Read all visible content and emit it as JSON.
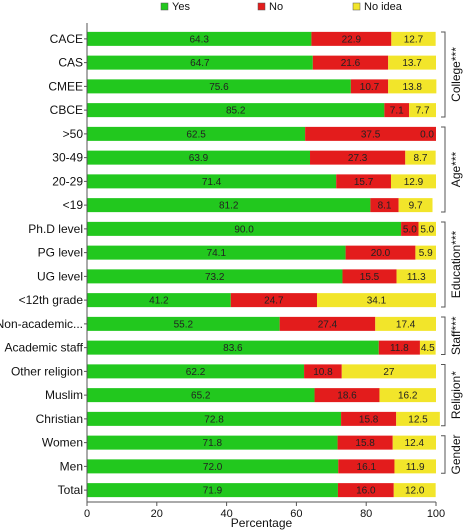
{
  "chart_data": {
    "type": "bar",
    "orientation": "horizontal-stacked-percent",
    "xlabel": "Percentage",
    "xlim": [
      0,
      100
    ],
    "xticks": [
      "0",
      "20",
      "40",
      "60",
      "80",
      "100"
    ],
    "grid": false,
    "legend_position": "top",
    "series": [
      {
        "name": "Yes",
        "color": "#22c81e"
      },
      {
        "name": "No",
        "color": "#e31c1c"
      },
      {
        "name": "No idea",
        "color": "#f2e52a"
      }
    ],
    "rows": [
      {
        "label": "CACE",
        "values": [
          64.3,
          22.9,
          12.7
        ],
        "texts": [
          "64.3",
          "22.9",
          "12.7"
        ]
      },
      {
        "label": "CAS",
        "values": [
          64.7,
          21.6,
          13.7
        ],
        "texts": [
          "64.7",
          "21.6",
          "13.7"
        ]
      },
      {
        "label": "CMEE",
        "values": [
          75.6,
          10.7,
          13.8
        ],
        "texts": [
          "75.6",
          "10.7",
          "13.8"
        ]
      },
      {
        "label": "CBCE",
        "values": [
          85.2,
          7.1,
          7.7
        ],
        "texts": [
          "85.2",
          "7.1",
          "7.7"
        ]
      },
      {
        "label": ">50",
        "values": [
          62.5,
          37.5,
          0.0
        ],
        "texts": [
          "62.5",
          "37.5",
          "0.0"
        ]
      },
      {
        "label": "30-49",
        "values": [
          63.9,
          27.3,
          8.7
        ],
        "texts": [
          "63.9",
          "27.3",
          "8.7"
        ]
      },
      {
        "label": "20-29",
        "values": [
          71.4,
          15.7,
          12.9
        ],
        "texts": [
          "71.4",
          "15.7",
          "12.9"
        ]
      },
      {
        "label": "<19",
        "values": [
          81.2,
          8.1,
          9.7
        ],
        "texts": [
          "81.2",
          "8.1",
          "9.7"
        ]
      },
      {
        "label": "Ph.D level",
        "values": [
          90.0,
          5.0,
          5.0
        ],
        "texts": [
          "90.0",
          "5.0",
          "5.0"
        ]
      },
      {
        "label": "PG level",
        "values": [
          74.1,
          20.0,
          5.9
        ],
        "texts": [
          "74.1",
          "20.0",
          "5.9"
        ]
      },
      {
        "label": "UG level",
        "values": [
          73.2,
          15.5,
          11.3
        ],
        "texts": [
          "73.2",
          "15.5",
          "11.3"
        ]
      },
      {
        "label": "<12th grade",
        "values": [
          41.2,
          24.7,
          34.1
        ],
        "texts": [
          "41.2",
          "24.7",
          "34.1"
        ]
      },
      {
        "label": "Non-academic...",
        "values": [
          55.2,
          27.4,
          17.4
        ],
        "texts": [
          "55.2",
          "27.4",
          "17.4"
        ]
      },
      {
        "label": "Academic staff",
        "values": [
          83.6,
          11.8,
          4.5
        ],
        "texts": [
          "83.6",
          "11.8",
          "4.5"
        ]
      },
      {
        "label": "Other religion",
        "values": [
          62.2,
          10.8,
          27.0
        ],
        "texts": [
          "62.2",
          "10.8",
          "27"
        ]
      },
      {
        "label": "Muslim",
        "values": [
          65.2,
          18.6,
          16.2
        ],
        "texts": [
          "65.2",
          "18.6",
          "16.2"
        ]
      },
      {
        "label": "Christian",
        "values": [
          72.8,
          15.8,
          12.5
        ],
        "texts": [
          "72.8",
          "15.8",
          "12.5"
        ]
      },
      {
        "label": "Women",
        "values": [
          71.8,
          15.8,
          12.4
        ],
        "texts": [
          "71.8",
          "15.8",
          "12.4"
        ]
      },
      {
        "label": "Men",
        "values": [
          72.0,
          16.1,
          11.9
        ],
        "texts": [
          "72.0",
          "16.1",
          "11.9"
        ]
      },
      {
        "label": "Total",
        "values": [
          71.9,
          16.0,
          12.0
        ],
        "texts": [
          "71.9",
          "16.0",
          "12.0"
        ]
      }
    ],
    "groups": [
      {
        "label": "College***",
        "from": 0,
        "to": 3
      },
      {
        "label": "Age***",
        "from": 4,
        "to": 7
      },
      {
        "label": "Education***",
        "from": 8,
        "to": 11
      },
      {
        "label": "Staff***",
        "from": 12,
        "to": 13
      },
      {
        "label": "Religion*",
        "from": 14,
        "to": 16
      },
      {
        "label": "Gender",
        "from": 17,
        "to": 18
      }
    ]
  }
}
